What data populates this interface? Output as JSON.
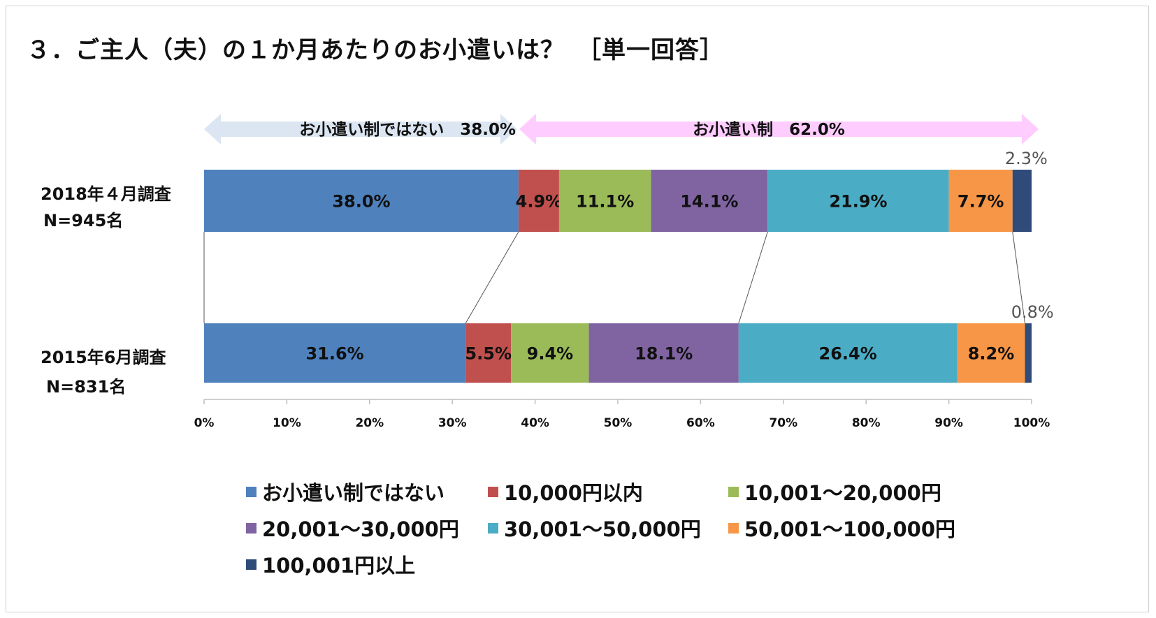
{
  "page": {
    "title": "３．ご主人（夫）の１か月あたりのお小遣いは？　［単一回答］"
  },
  "arrows": {
    "left": {
      "label": "お小遣い制ではない　38.0%",
      "color": "#dce6f2"
    },
    "right": {
      "label": "お小遣い制　62.0%",
      "color": "#ffccff"
    }
  },
  "rows": [
    {
      "line1": "2018年４月調査",
      "line2": "N=945名"
    },
    {
      "line1": "2015年6月調査",
      "line2": "N=831名"
    }
  ],
  "chart_data": {
    "type": "bar",
    "orientation": "horizontal",
    "stacked": true,
    "percent": true,
    "categories": [
      "2018年４月調査 N=945名",
      "2015年6月調査 N=831名"
    ],
    "series": [
      {
        "name": "お小遣い制ではない",
        "color": "#4f81bd",
        "values": [
          38.0,
          31.6
        ],
        "labels": [
          "38.0%",
          "31.6%"
        ]
      },
      {
        "name": "10,000円以内",
        "color": "#c0504d",
        "values": [
          4.9,
          5.5
        ],
        "labels": [
          "4.9%",
          "5.5%"
        ]
      },
      {
        "name": "10,001～20,000円",
        "color": "#9bbb59",
        "values": [
          11.1,
          9.4
        ],
        "labels": [
          "11.1%",
          "9.4%"
        ]
      },
      {
        "name": "20,001～30,000円",
        "color": "#8064a2",
        "values": [
          14.1,
          18.1
        ],
        "labels": [
          "14.1%",
          "18.1%"
        ]
      },
      {
        "name": "30,001～50,000円",
        "color": "#4bacc6",
        "values": [
          21.9,
          26.4
        ],
        "labels": [
          "21.9%",
          "26.4%"
        ]
      },
      {
        "name": "50,001～100,000円",
        "color": "#f79646",
        "values": [
          7.7,
          8.2
        ],
        "labels": [
          "7.7%",
          "8.2%"
        ]
      },
      {
        "name": "100,001円以上",
        "color": "#2e4b7a",
        "values": [
          2.3,
          0.8
        ],
        "labels": [
          "2.3%",
          "0.8%"
        ]
      }
    ],
    "xticks": [
      "0%",
      "10%",
      "20%",
      "30%",
      "40%",
      "50%",
      "60%",
      "70%",
      "80%",
      "90%",
      "100%"
    ],
    "xlim": [
      0,
      100
    ],
    "grid": false,
    "legend_position": "bottom"
  }
}
